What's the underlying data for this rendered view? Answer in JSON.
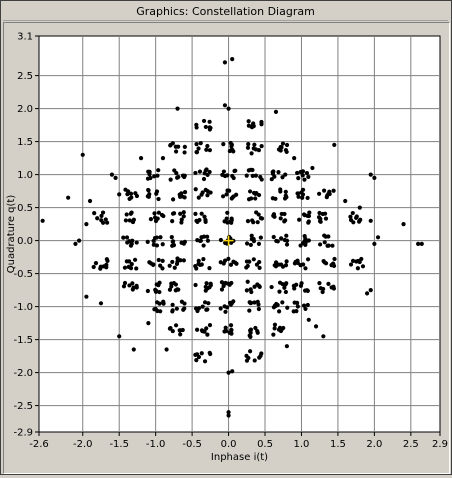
{
  "window": {
    "title": "Graphics: Constellation Diagram"
  },
  "chart_data": {
    "type": "scatter",
    "xlabel": "Inphase i(t)",
    "ylabel": "Quadrature q(t)",
    "xlim": [
      -2.6,
      2.9
    ],
    "ylim": [
      -2.9,
      3.1
    ],
    "xticks": [
      -2.6,
      -2.0,
      -1.5,
      -1.0,
      -0.5,
      0.0,
      0.5,
      1.0,
      1.5,
      2.0,
      2.5,
      2.9
    ],
    "xtick_labels": [
      "-2.6",
      "-2.0",
      "-1.5",
      "-1.0",
      "-0.5",
      "0.0",
      "0.5",
      "1.0",
      "1.5",
      "2.0",
      "2.5",
      "2.9"
    ],
    "yticks": [
      3.1,
      2.5,
      2.0,
      1.5,
      1.0,
      0.5,
      0.0,
      -0.5,
      -1.0,
      -1.5,
      -2.0,
      -2.5,
      -2.9
    ],
    "ytick_labels": [
      "3.1",
      "2.5",
      "2.0",
      "1.5",
      "1.0",
      "0.5",
      "0.0",
      "-0.5",
      "-1.0",
      "-1.5",
      "-2.0",
      "-2.5",
      "-2.9"
    ],
    "grid": true,
    "colors": {
      "points": "#000000",
      "grid": "#808080",
      "origin_marker": "#ffd700"
    },
    "clusters": [
      [
        0.0,
        1.4
      ],
      [
        0.0,
        1.0
      ],
      [
        0.0,
        0.7
      ],
      [
        0.0,
        0.35
      ],
      [
        0.0,
        0.0
      ],
      [
        0.0,
        -0.35
      ],
      [
        0.0,
        -0.7
      ],
      [
        0.0,
        -1.0
      ],
      [
        0.0,
        -1.35
      ],
      [
        0.35,
        1.4
      ],
      [
        -0.35,
        1.4
      ],
      [
        0.35,
        -1.4
      ],
      [
        -0.35,
        -1.35
      ],
      [
        0.35,
        1.0
      ],
      [
        -0.35,
        1.0
      ],
      [
        0.35,
        -1.0
      ],
      [
        -0.35,
        -1.0
      ],
      [
        0.35,
        0.7
      ],
      [
        -0.35,
        0.7
      ],
      [
        0.35,
        -0.7
      ],
      [
        -0.35,
        -0.7
      ],
      [
        0.35,
        0.35
      ],
      [
        -0.35,
        0.35
      ],
      [
        0.35,
        -0.35
      ],
      [
        -0.35,
        -0.35
      ],
      [
        0.35,
        0.0
      ],
      [
        -0.35,
        0.0
      ],
      [
        0.7,
        0.0
      ],
      [
        -0.7,
        0.0
      ],
      [
        1.0,
        0.0
      ],
      [
        -1.0,
        0.0
      ],
      [
        1.35,
        0.0
      ],
      [
        -1.35,
        0.0
      ],
      [
        0.7,
        0.35
      ],
      [
        -0.7,
        0.35
      ],
      [
        0.7,
        -0.35
      ],
      [
        -0.7,
        -0.35
      ],
      [
        1.0,
        0.35
      ],
      [
        -1.0,
        0.35
      ],
      [
        1.0,
        -0.35
      ],
      [
        -1.0,
        -0.35
      ],
      [
        0.7,
        0.7
      ],
      [
        -0.7,
        0.7
      ],
      [
        0.7,
        -0.7
      ],
      [
        -0.7,
        -0.7
      ],
      [
        1.0,
        0.7
      ],
      [
        -1.0,
        0.7
      ],
      [
        1.0,
        -0.7
      ],
      [
        -1.0,
        -0.7
      ],
      [
        0.7,
        1.0
      ],
      [
        -0.7,
        1.0
      ],
      [
        0.7,
        -1.0
      ],
      [
        -0.7,
        -1.0
      ],
      [
        1.0,
        1.0
      ],
      [
        -1.0,
        1.0
      ],
      [
        1.0,
        -1.0
      ],
      [
        -1.0,
        -1.0
      ],
      [
        0.7,
        1.4
      ],
      [
        -0.7,
        1.4
      ],
      [
        0.7,
        -1.35
      ],
      [
        -0.7,
        -1.35
      ],
      [
        1.35,
        0.7
      ],
      [
        -1.35,
        0.7
      ],
      [
        1.35,
        -0.7
      ],
      [
        -1.35,
        -0.7
      ],
      [
        1.35,
        0.35
      ],
      [
        -1.35,
        0.35
      ],
      [
        1.35,
        -0.35
      ],
      [
        -1.35,
        -0.35
      ],
      [
        0.35,
        1.75
      ],
      [
        -0.35,
        1.75
      ],
      [
        0.35,
        -1.75
      ],
      [
        -0.35,
        -1.75
      ],
      [
        1.75,
        0.35
      ],
      [
        -1.75,
        0.35
      ],
      [
        1.75,
        -0.35
      ],
      [
        -1.75,
        -0.35
      ]
    ],
    "outliers": [
      [
        0.05,
        2.75
      ],
      [
        -0.05,
        2.7
      ],
      [
        0.0,
        -2.6
      ],
      [
        0.0,
        -2.65
      ],
      [
        0.0,
        -2.0
      ],
      [
        0.05,
        -1.98
      ],
      [
        -0.05,
        2.05
      ],
      [
        0.0,
        2.0
      ],
      [
        -0.7,
        2.0
      ],
      [
        0.65,
        1.95
      ],
      [
        -0.85,
        -1.65
      ],
      [
        0.8,
        -1.6
      ],
      [
        -1.75,
        -0.95
      ],
      [
        -1.95,
        -0.85
      ],
      [
        1.9,
        -0.8
      ],
      [
        1.95,
        -0.75
      ],
      [
        2.0,
        0.95
      ],
      [
        1.95,
        1.0
      ],
      [
        -2.0,
        1.3
      ],
      [
        -1.6,
        1.0
      ],
      [
        -1.55,
        0.95
      ],
      [
        -2.1,
        -0.05
      ],
      [
        -2.05,
        0.0
      ],
      [
        2.0,
        -0.05
      ],
      [
        2.05,
        0.05
      ],
      [
        -1.5,
        -1.45
      ],
      [
        -1.3,
        -1.65
      ],
      [
        1.3,
        -1.45
      ],
      [
        1.45,
        1.45
      ],
      [
        2.4,
        0.25
      ],
      [
        2.6,
        -0.05
      ],
      [
        2.65,
        -0.05
      ],
      [
        -2.55,
        0.3
      ],
      [
        -2.2,
        0.65
      ],
      [
        -1.9,
        0.6
      ],
      [
        1.6,
        0.6
      ],
      [
        1.8,
        0.5
      ],
      [
        -1.5,
        0.7
      ],
      [
        1.2,
        -1.3
      ],
      [
        -1.2,
        1.25
      ],
      [
        1.15,
        1.1
      ],
      [
        -0.9,
        1.25
      ],
      [
        0.9,
        1.25
      ],
      [
        -1.1,
        -1.25
      ],
      [
        1.1,
        -1.2
      ],
      [
        -1.85,
        -0.4
      ],
      [
        1.95,
        0.3
      ],
      [
        -1.95,
        0.25
      ]
    ]
  }
}
